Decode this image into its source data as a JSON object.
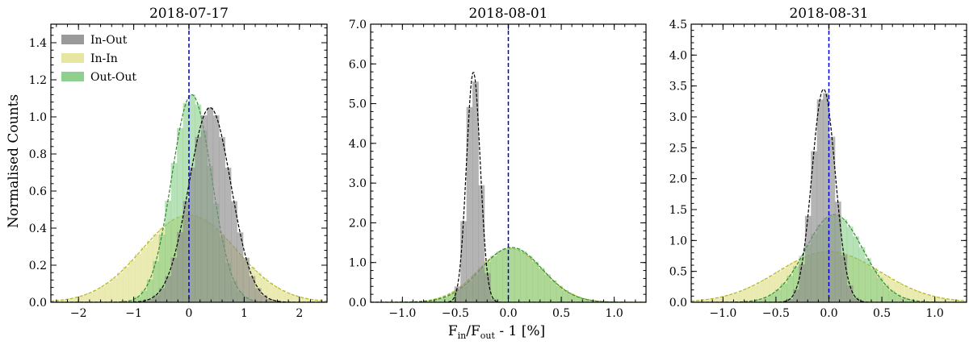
{
  "figure": {
    "ylabel": "Normalised Counts",
    "xlabel_main": "F",
    "xlabel_sub_in": "in",
    "xlabel_slash": "/F",
    "xlabel_sub_out": "out",
    "xlabel_tail": " - 1 [%]"
  },
  "legend": {
    "location": "top-left of first panel",
    "items": [
      {
        "label": "In-Out",
        "color": "#9a9a9a"
      },
      {
        "label": "In-In",
        "color": "#e6e6a0"
      },
      {
        "label": "Out-Out",
        "color": "#8fd08f"
      }
    ]
  },
  "colors": {
    "in_out_fill": "#8c8c8c",
    "in_in_fill": "#e3e39a",
    "out_out_fill": "#7cc87c",
    "in_out_fit": "#000000",
    "in_in_fit": "#b5b520",
    "out_out_fit": "#2e8b2e",
    "zero_line": "#0000cc"
  },
  "chart_data": [
    {
      "type": "area",
      "title": "2018-07-17",
      "xlim": [
        -2.5,
        2.5
      ],
      "ylim": [
        0,
        1.5
      ],
      "xticks": [
        -2,
        -1,
        0,
        1,
        2
      ],
      "xticklabels": [
        "−2",
        "−1",
        "0",
        "1",
        "2"
      ],
      "yticks": [
        0,
        0.2,
        0.4,
        0.6,
        0.8,
        1.0,
        1.2,
        1.4
      ],
      "yticklabels": [
        "0.0",
        "0.2",
        "0.4",
        "0.6",
        "0.8",
        "1.0",
        "1.2",
        "1.4"
      ],
      "vline_x": 0,
      "series": [
        {
          "name": "In-In",
          "fit_mean": 0.0,
          "fit_sigma": 0.85,
          "fit_amplitude": 0.47
        },
        {
          "name": "Out-Out",
          "fit_mean": 0.05,
          "fit_sigma": 0.36,
          "fit_amplitude": 1.12
        },
        {
          "name": "In-Out",
          "fit_mean": 0.38,
          "fit_sigma": 0.38,
          "fit_amplitude": 1.05
        }
      ]
    },
    {
      "type": "area",
      "title": "2018-08-01",
      "xlim": [
        -1.3,
        1.3
      ],
      "ylim": [
        0,
        7.0
      ],
      "xticks": [
        -1.0,
        -0.5,
        0.0,
        0.5,
        1.0
      ],
      "xticklabels": [
        "−1.0",
        "−0.5",
        "0.0",
        "0.5",
        "1.0"
      ],
      "yticks": [
        0,
        1,
        2,
        3,
        4,
        5,
        6,
        7
      ],
      "yticklabels": [
        "0.0",
        "1.0",
        "2.0",
        "3.0",
        "4.0",
        "5.0",
        "6.0",
        "7.0"
      ],
      "vline_x": 0,
      "series": [
        {
          "name": "In-In",
          "fit_mean": 0.02,
          "fit_sigma": 0.3,
          "fit_amplitude": 1.35
        },
        {
          "name": "Out-Out",
          "fit_mean": 0.03,
          "fit_sigma": 0.29,
          "fit_amplitude": 1.38
        },
        {
          "name": "In-Out",
          "fit_mean": -0.33,
          "fit_sigma": 0.065,
          "fit_amplitude": 5.8
        }
      ]
    },
    {
      "type": "area",
      "title": "2018-08-31",
      "xlim": [
        -1.3,
        1.3
      ],
      "ylim": [
        0,
        4.5
      ],
      "xticks": [
        -1.0,
        -0.5,
        0.0,
        0.5,
        1.0
      ],
      "xticklabels": [
        "−1.0",
        "−0.5",
        "0.0",
        "0.5",
        "1.0"
      ],
      "yticks": [
        0,
        0.5,
        1.0,
        1.5,
        2.0,
        2.5,
        3.0,
        3.5,
        4.0,
        4.5
      ],
      "yticklabels": [
        "0.0",
        "0.5",
        "1.0",
        "1.5",
        "2.0",
        "2.5",
        "3.0",
        "3.5",
        "4.0",
        "4.5"
      ],
      "vline_x": 0,
      "series": [
        {
          "name": "In-In",
          "fit_mean": 0.0,
          "fit_sigma": 0.48,
          "fit_amplitude": 0.82
        },
        {
          "name": "Out-Out",
          "fit_mean": 0.05,
          "fit_sigma": 0.27,
          "fit_amplitude": 1.42
        },
        {
          "name": "In-Out",
          "fit_mean": -0.05,
          "fit_sigma": 0.11,
          "fit_amplitude": 3.45
        }
      ]
    }
  ]
}
